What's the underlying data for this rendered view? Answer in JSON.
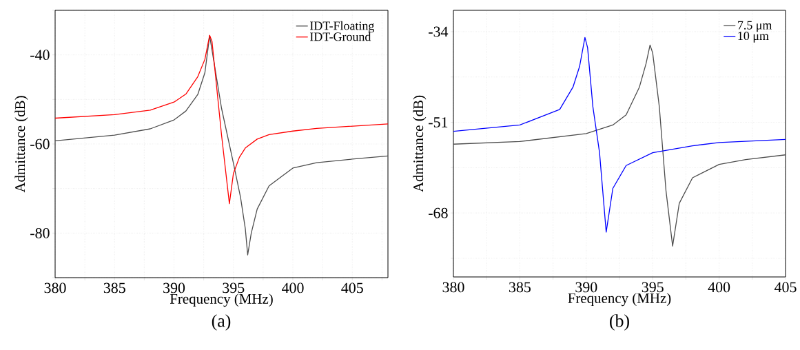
{
  "chart_data": [
    {
      "type": "line",
      "xlabel": "Frequency (MHz)",
      "ylabel": "Admittance (dB)",
      "annotations": [
        "(a)"
      ],
      "xlim": [
        380,
        408
      ],
      "ylim": [
        -90,
        -30
      ],
      "xticks": [
        380,
        {
          "value": 382.5,
          "label": null
        },
        385,
        {
          "value": 387.5,
          "label": null
        },
        390,
        {
          "value": 392.5,
          "label": null
        },
        395,
        {
          "value": 397.5,
          "label": null
        },
        400,
        {
          "value": 402.5,
          "label": null
        },
        405,
        {
          "value": 407.5,
          "label": null
        }
      ],
      "yticks": [
        {
          "value": -90,
          "label": null
        },
        -80,
        {
          "value": -70,
          "label": null
        },
        -60,
        {
          "value": -50,
          "label": null
        },
        -40,
        {
          "value": -30,
          "label": null
        }
      ],
      "grid": true,
      "legend": "top right",
      "marker": "none",
      "line_style": "solid",
      "series": [
        {
          "name": "IDT-Floating",
          "color": "#4d4d4d",
          "x": [
            380,
            385,
            388,
            390,
            391,
            392,
            392.6,
            393,
            394,
            395,
            395.6,
            396,
            396.2,
            396.5,
            397,
            398,
            400,
            402,
            405,
            408
          ],
          "values": [
            -59.3,
            -58,
            -56.6,
            -54.6,
            -52.6,
            -48.9,
            -44,
            -35.7,
            -52,
            -64.3,
            -72,
            -79,
            -84.9,
            -80,
            -74.6,
            -69.4,
            -65.4,
            -64.2,
            -63.4,
            -62.7
          ]
        },
        {
          "name": "IDT-Ground",
          "color": "#ff0000",
          "x": [
            380,
            385,
            388,
            390,
            391,
            392,
            392.6,
            393,
            393.2,
            394,
            394.66,
            395,
            395.5,
            396,
            397,
            398,
            400,
            402,
            405,
            408
          ],
          "values": [
            -54.2,
            -53.4,
            -52.4,
            -50.6,
            -48.8,
            -44.9,
            -41,
            -35.6,
            -37,
            -58,
            -73.4,
            -66.6,
            -63,
            -60.9,
            -58.9,
            -57.9,
            -57.1,
            -56.5,
            -56,
            -55.5
          ]
        }
      ]
    },
    {
      "type": "line",
      "xlabel": "Frequency (MHz)",
      "ylabel": "Admittance (dB)",
      "annotations": [
        "(b)"
      ],
      "xlim": [
        380,
        405
      ],
      "ylim": [
        -80,
        -30
      ],
      "xticks": [
        380,
        {
          "value": 382.5,
          "label": null
        },
        385,
        {
          "value": 387.5,
          "label": null
        },
        390,
        {
          "value": 392.5,
          "label": null
        },
        395,
        {
          "value": 397.5,
          "label": null
        },
        400,
        {
          "value": 402.5,
          "label": null
        },
        405
      ],
      "yticks": [
        {
          "value": -76.5,
          "label": null
        },
        -68,
        {
          "value": -59.5,
          "label": null
        },
        -51,
        {
          "value": -42.5,
          "label": null
        },
        -34
      ],
      "grid": true,
      "legend": "top right",
      "marker": "none",
      "line_style": "solid",
      "series": [
        {
          "name": "7.5 μm",
          "color": "#4d4d4d",
          "x": [
            380,
            385,
            390,
            392,
            393,
            394,
            394.5,
            394.8,
            395,
            395.5,
            396,
            396.5,
            397,
            398,
            400,
            402,
            405
          ],
          "values": [
            -55.1,
            -54.6,
            -53.1,
            -51.5,
            -49.6,
            -44.4,
            -40,
            -36.5,
            -38,
            -48.1,
            -63.8,
            -74.2,
            -66.2,
            -61.4,
            -58.9,
            -58,
            -57.1
          ]
        },
        {
          "name": "10 μm",
          "color": "#0000ff",
          "x": [
            380,
            385,
            388,
            389,
            389.5,
            389.9,
            390.1,
            390.5,
            391,
            391.5,
            392,
            393,
            395,
            398,
            400,
            405
          ],
          "values": [
            -52.7,
            -51.5,
            -48.6,
            -44.4,
            -40.5,
            -35.1,
            -37,
            -48.1,
            -56.7,
            -71.6,
            -63.4,
            -59.1,
            -56.7,
            -55.4,
            -54.8,
            -54.2
          ]
        }
      ]
    }
  ]
}
